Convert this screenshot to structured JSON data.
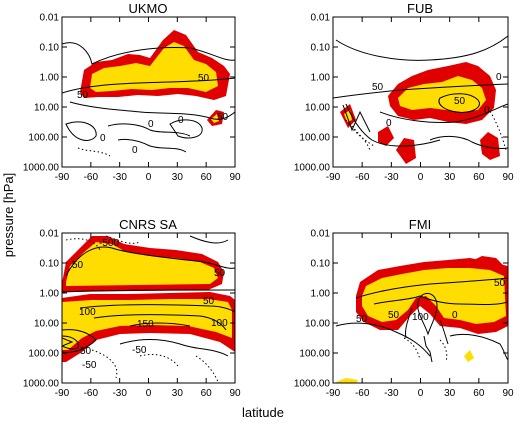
{
  "figure": {
    "ylabel": "pressure [hPa]",
    "xlabel": "latitude"
  },
  "colors": {
    "significant_99": "#ffdd00",
    "significant_95": "#e00000",
    "contour": "#000000"
  },
  "chart_data": [
    {
      "type": "contour",
      "title": "UKMO",
      "x_ticks": [
        "-90",
        "-60",
        "-30",
        "0",
        "30",
        "60",
        "90"
      ],
      "y_ticks": [
        "0.01",
        "0.10",
        "1.00",
        "10.00",
        "100.00",
        "1000.00"
      ],
      "xlim": [
        -90,
        90
      ],
      "ylim": [
        1000,
        0.01
      ],
      "y_scale": "log",
      "contour_labels": [
        "50",
        "50",
        "0",
        "0",
        "0",
        "0",
        "50"
      ]
    },
    {
      "type": "contour",
      "title": "FUB",
      "x_ticks": [
        "-90",
        "-60",
        "-30",
        "0",
        "30",
        "60",
        "90"
      ],
      "y_ticks": [
        "0.01",
        "0.10",
        "1.00",
        "10.00",
        "100.00",
        "1000.00"
      ],
      "xlim": [
        -90,
        90
      ],
      "ylim": [
        1000,
        0.01
      ],
      "y_scale": "log",
      "contour_labels": [
        "50",
        "0",
        "50",
        "0",
        "0"
      ]
    },
    {
      "type": "contour",
      "title": "CNRS SA",
      "x_ticks": [
        "-90",
        "-60",
        "-30",
        "0",
        "30",
        "60",
        "90"
      ],
      "y_ticks": [
        "0.01",
        "0.10",
        "1.00",
        "10.00",
        "100.00",
        "1000.00"
      ],
      "xlim": [
        -90,
        90
      ],
      "ylim": [
        1000,
        0.01
      ],
      "y_scale": "log",
      "contour_labels": [
        "-500",
        "50",
        "50",
        "50",
        "100",
        "150",
        "100",
        "50",
        "-50",
        "-50"
      ]
    },
    {
      "type": "contour",
      "title": "FMI",
      "x_ticks": [
        "-90",
        "-60",
        "-30",
        "0",
        "30",
        "60",
        "90"
      ],
      "y_ticks": [
        "0.01",
        "0.10",
        "1.00",
        "10.00",
        "100.00",
        "1000.00"
      ],
      "xlim": [
        -90,
        90
      ],
      "ylim": [
        1000,
        0.01
      ],
      "y_scale": "log",
      "contour_labels": [
        "50",
        "50",
        "100",
        "50",
        "0"
      ]
    }
  ]
}
